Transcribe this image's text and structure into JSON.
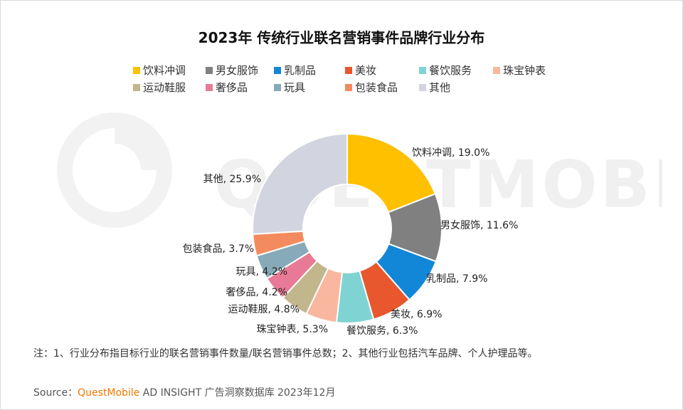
{
  "chart_data": {
    "type": "pie",
    "title": "2023年 传统行业联名营销事件品牌行业分布",
    "legend_position": "top",
    "donut": true,
    "slices": [
      {
        "label": "饮料冲调",
        "value": 19.0,
        "value_label": "19.0%",
        "color": "#ffc000"
      },
      {
        "label": "男女服饰",
        "value": 11.6,
        "value_label": "11.6%",
        "color": "#808080"
      },
      {
        "label": "乳制品",
        "value": 7.9,
        "value_label": "7.9%",
        "color": "#1287d8"
      },
      {
        "label": "美妆",
        "value": 6.9,
        "value_label": "6.9%",
        "color": "#e8572e"
      },
      {
        "label": "餐饮服务",
        "value": 6.3,
        "value_label": "6.3%",
        "color": "#7fd3d3"
      },
      {
        "label": "珠宝钟表",
        "value": 5.3,
        "value_label": "5.3%",
        "color": "#f9b7a0"
      },
      {
        "label": "运动鞋服",
        "value": 4.8,
        "value_label": "4.8%",
        "color": "#c2b68c"
      },
      {
        "label": "奢侈品",
        "value": 4.2,
        "value_label": "4.2%",
        "color": "#e87a96"
      },
      {
        "label": "玩具",
        "value": 4.2,
        "value_label": "4.2%",
        "color": "#87aab8"
      },
      {
        "label": "包装食品",
        "value": 3.7,
        "value_label": "3.7%",
        "color": "#f48b5e"
      },
      {
        "label": "其他",
        "value": 25.9,
        "value_label": "25.9%",
        "color": "#d2d5df"
      }
    ]
  },
  "watermark_text": "QUESTMOBILE",
  "note": "注：1、行业分布指目标行业的联名营销事件数量/联名营销事件总数；2、其他行业包括汽车品牌、个人护理品等。",
  "source": {
    "prefix": "Source：",
    "brand": "QuestMobile",
    "rest": " AD INSIGHT 广告洞察数据库 2023年12月"
  }
}
